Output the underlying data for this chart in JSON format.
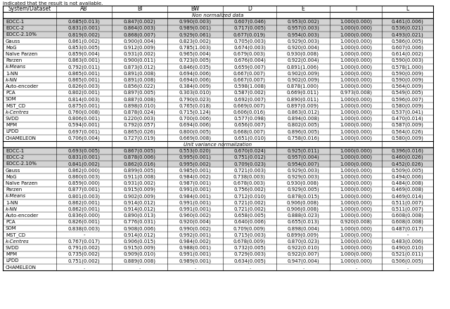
{
  "caption": "indicated that the result is not available.",
  "columns": [
    "System/Dataset",
    "AB",
    "BI",
    "BW",
    "D",
    "E",
    "I",
    "L"
  ],
  "section1_title": "Non normalized data",
  "section1_rows": [
    [
      "EOCC-1",
      "0.685(0.013)",
      "0.847(0.002)",
      "0.990(0.003)",
      "0.607(0.046)",
      "0.953(0.002)",
      "1.000(0.000)",
      "0.461(0.006)"
    ],
    [
      "EOCC-2",
      "0.831(0.001)",
      "0.864(0.003)",
      "0.989(0.001)",
      "0.717(0.005)",
      "0.957(0.003)",
      "1.000(0.000)",
      "0.536(0.021)"
    ],
    [
      "EOCC-2.10%",
      "0.819(0.002)",
      "0.868(0.007)",
      "0.929(0.061)",
      "0.677(0.019)",
      "0.954(0.003)",
      "1.000(0.000)",
      "0.493(0.021)"
    ],
    [
      "Gauss",
      "0.861(0.002)",
      "0.900(0.004)",
      "0.823(0.002)",
      "0.705(0.003)",
      "0.929(0.003)",
      "1.000(0.000)",
      "0.586(0.005)"
    ],
    [
      "MoG",
      "0.853(0.005)",
      "0.912(0.009)",
      "0.785(1.003)",
      "0.674(0.003)",
      "0.920(0.004)",
      "1.000(0.000)",
      "0.607(0.006)"
    ],
    [
      "Naïve Parzen",
      "0.859(0.004)",
      "0.931(0.002)",
      "0.965(0.004)",
      "0.679(0.003)",
      "0.930(0.008)",
      "1.000(0.000)",
      "0.614(0.002)"
    ],
    [
      "Parzen",
      "0.863(0.001)",
      "0.900(0.011)",
      "0.723(0.005)",
      "0.676(0.004)",
      "0.922(0.004)",
      "1.000(0.000)",
      "0.590(0.003)"
    ],
    [
      "k-Means",
      "0.792(0.011)",
      "0.873(0.012)",
      "0.846(0.035)",
      "0.659(0.007)",
      "0.891(1.006)",
      "1.000(0.000)",
      "0.578(1.000)"
    ],
    [
      "1-NN",
      "0.865(0.001)",
      "0.891(0.008)",
      "0.694(0.006)",
      "0.667(0.007)",
      "0.902(0.009)",
      "1.000(0.000)",
      "0.590(0.009)"
    ],
    [
      "k-NN",
      "0.865(0.001)",
      "0.891(0.008)",
      "0.694(0.006)",
      "0.667(0.007)",
      "0.902(0.009)",
      "1.000(0.000)",
      "0.590(0.009)"
    ],
    [
      "Auto-encoder",
      "0.826(0.003)",
      "0.856(0.022)",
      "0.384(0.009)",
      "0.598(1.008)",
      "0.878(1.000)",
      "1.000(0.000)",
      "0.564(0.009)"
    ],
    [
      "PCA",
      "0.802(0.001)",
      "0.897(0.005)",
      "0.303(0.010)",
      "0.587(0.002)",
      "0.669(0.011)",
      "0.973(0.008)",
      "0.549(0.005)"
    ],
    [
      "SOM",
      "0.814(0.003)",
      "0.887(0.008)",
      "0.790(0.023)",
      "0.692(0.007)",
      "0.890(0.011)",
      "1.000(0.000)",
      "0.596(0.007)"
    ],
    [
      "MST_CD",
      "0.875(0.001)",
      "0.898(0.010)",
      "0.765(0.018)",
      "0.669(0.007)",
      "0.897(0.009)",
      "1.000(0.000)",
      "0.580(0.009)"
    ],
    [
      "k-Centres",
      "0.760(0.008)",
      "0.878(0.024)",
      "0.715(0.124)",
      "0.606(0.016)",
      "0.863(0.012)",
      "1.000(0.000)",
      "0.537(0.041)"
    ],
    [
      "SVDD",
      "0.806(0.001)",
      "0.220(0.003)",
      "0.700(0.006)",
      "0.577(0.098)",
      "0.894(0.008)",
      "1.000(0.000)",
      "0.470(0.014)"
    ],
    [
      "MPM",
      "0.594(0.001)",
      "0.792(0.057)",
      "0.694(0.006)",
      "0.656(0.007)",
      "0.802(0.005)",
      "1.000(0.000)",
      "0.587(0.009)"
    ],
    [
      "LPDD",
      "0.697(0.001)",
      "0.865(0.026)",
      "0.800(0.005)",
      "0.668(0.007)",
      "0.896(0.005)",
      "1.000(0.000)",
      "0.564(0.026)"
    ],
    [
      "CHAMELEON",
      "0.706(0.004)",
      "0.727(0.019)",
      "0.669(0.008)",
      "0.651(0.010)",
      "0.758(0.016)",
      "1.000(0.000)",
      "0.580(0.009)"
    ]
  ],
  "section2_title": "Unit variance normalization",
  "section2_rows": [
    [
      "EOCC-1",
      "0.693(0.005)",
      "0.867(0.005)",
      "0.553(0.020)",
      "0.670(0.024)",
      "0.925(0.011)",
      "1.000(0.000)",
      "0.396(0.016)"
    ],
    [
      "EOCC-2",
      "0.831(0.001)",
      "0.878(0.006)",
      "0.995(0.001)",
      "0.751(0.012)",
      "0.957(0.004)",
      "1.000(0.000)",
      "0.460(0.026)"
    ],
    [
      "EOCC-2.10%",
      "0.841(0.002)",
      "0.862(0.016)",
      "0.995(0.002)",
      "0.709(0.023)",
      "0.954(0.007)",
      "1.000(0.000)",
      "0.452(0.026)"
    ],
    [
      "Gauss",
      "0.862(0.000)",
      "0.899(0.005)",
      "0.985(0.001)",
      "0.721(0.003)",
      "0.929(0.003)",
      "1.000(0.000)",
      "0.509(0.005)"
    ],
    [
      "MoG",
      "0.860(0.003)",
      "0.911(0.008)",
      "0.984(0.002)",
      "0.738(0.003)",
      "0.929(0.003)",
      "1.000(0.000)",
      "0.494(0.006)"
    ],
    [
      "Naïve Parzen",
      "0.859(0.000)",
      "0.931(0.002)",
      "0.987(0.001)",
      "0.678(0.003)",
      "0.930(0.008)",
      "1.000(0.000)",
      "0.484(0.008)"
    ],
    [
      "Parzen",
      "0.877(0.001)",
      "0.915(0.009)",
      "0.991(0.001)",
      "0.756(0.002)",
      "0.929(0.005)",
      "1.000(0.000)",
      "0.469(0.008)"
    ],
    [
      "k-Means",
      "0.801(0.003)",
      "0.902(0.009)",
      "0.984(0.001)",
      "0.712(0.010)",
      "0.878(0.015)",
      "1.000(0.000)",
      "0.469(0.014)"
    ],
    [
      "1-NN",
      "0.862(0.001)",
      "0.914(0.012)",
      "0.991(0.001)",
      "0.721(0.002)",
      "0.906(0.008)",
      "1.000(0.000)",
      "0.511(0.007)"
    ],
    [
      "k-NN",
      "0.862(0.001)",
      "0.914(0.012)",
      "0.991(0.001)",
      "0.721(0.002)",
      "0.906(0.008)",
      "1.000(0.000)",
      "0.511(0.007)"
    ],
    [
      "Auto-encoder",
      "0.836(0.000)",
      "0.890(0.013)",
      "0.960(0.002)",
      "0.658(0.005)",
      "0.888(0.023)",
      "1.000(0.000)",
      "0.608(0.008)"
    ],
    [
      "PCA",
      "0.826(0.001)",
      "0.776(0.031)",
      "0.920(0.004)",
      "0.640(0.006)",
      "0.655(0.013)",
      "0.920(0.008)",
      "0.608(0.008)"
    ],
    [
      "SOM",
      "0.838(0.003)",
      "0.908(0.006)",
      "0.990(0.002)",
      "0.709(0.009)",
      "0.898(0.004)",
      "1.000(0.000)",
      "0.487(0.017)"
    ],
    [
      "MST_CD",
      "-",
      "0.914(0.012)",
      "0.992(0.001)",
      "0.715(0.003)",
      "0.899(0.009)",
      "1.000(0.000)",
      "-"
    ],
    [
      "k-Centres",
      "0.767(0.017)",
      "0.906(0.015)",
      "0.984(0.002)",
      "0.678(0.009)",
      "0.870(0.023)",
      "1.000(0.000)",
      "0.483(0.006)"
    ],
    [
      "SVDD",
      "0.791(0.002)",
      "0.915(0.009)",
      "0.988(0.001)",
      "0.732(0.005)",
      "0.922(0.010)",
      "1.000(0.000)",
      "0.490(0.010)"
    ],
    [
      "MPM",
      "0.735(0.002)",
      "0.909(0.010)",
      "0.991(0.001)",
      "0.729(0.003)",
      "0.922(0.007)",
      "1.000(0.000)",
      "0.521(0.011)"
    ],
    [
      "LPDD",
      "0.751(0.002)",
      "0.889(0.008)",
      "0.989(0.001)",
      "0.634(0.005)",
      "0.947(0.004)",
      "1.000(0.000)",
      "0.506(0.005)"
    ],
    [
      "CHAMELEON",
      ".",
      ".",
      ".",
      ".",
      ".",
      ".",
      "."
    ]
  ],
  "eocc_bg": "#d3d3d3",
  "font_size": 5.0,
  "header_font_size": 5.5
}
